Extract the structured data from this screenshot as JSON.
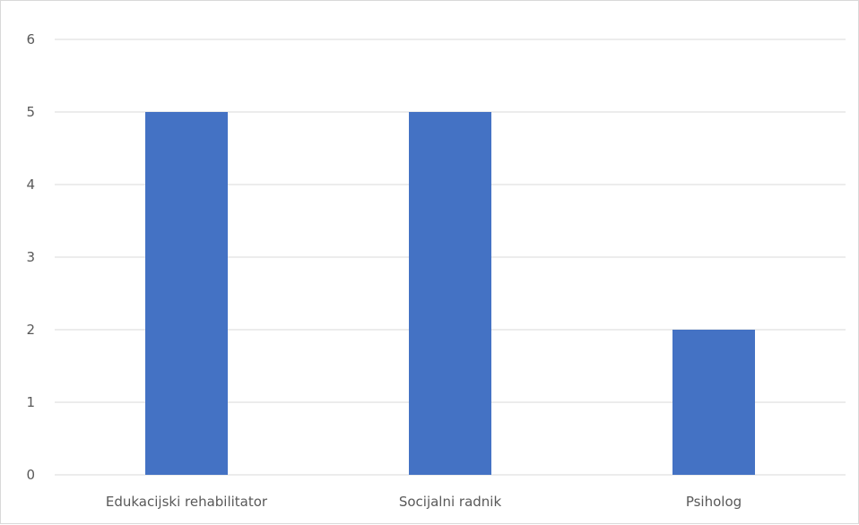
{
  "chart_data": {
    "type": "bar",
    "title": "",
    "xlabel": "",
    "ylabel": "",
    "categories": [
      "Edukacijski rehabilitator",
      "Socijalni radnik",
      "Psiholog"
    ],
    "values": [
      5,
      5,
      2
    ],
    "ylim": [
      0,
      6
    ],
    "yticks": [
      "0",
      "1",
      "2",
      "3",
      "4",
      "5",
      "6"
    ],
    "grid": true,
    "legend": "none",
    "bar_color": "#4472c4",
    "grid_color": "#d9d9d9",
    "text_color": "#595959"
  }
}
